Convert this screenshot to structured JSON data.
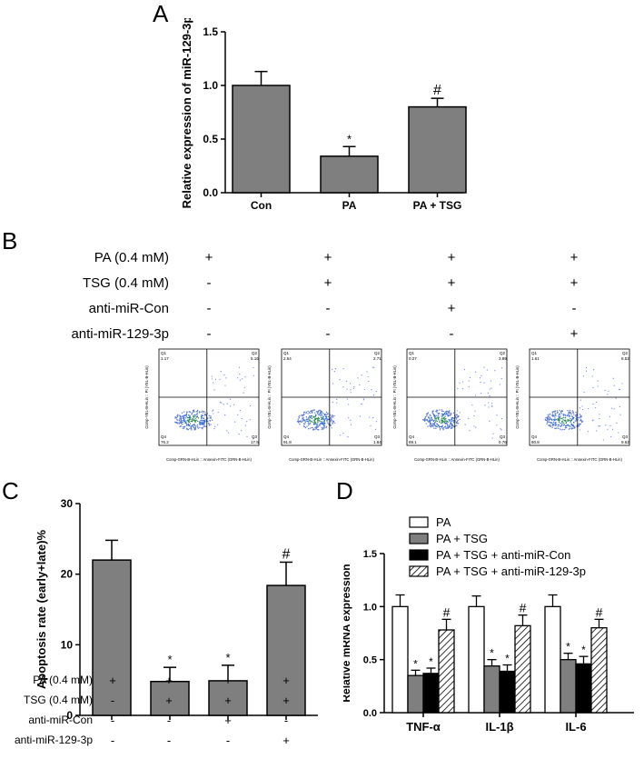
{
  "panels": {
    "A": "A",
    "B": "B",
    "C": "C",
    "D": "D"
  },
  "colors": {
    "bar_gray": "#7f7f7f",
    "black": "#000000",
    "white": "#ffffff"
  },
  "chart_data": [
    {
      "id": "A",
      "type": "bar",
      "ylabel": "Relative expression of miR-129-3p",
      "categories": [
        "Con",
        "PA",
        "PA + TSG"
      ],
      "values": [
        1.0,
        0.34,
        0.8
      ],
      "errors": [
        0.13,
        0.09,
        0.08
      ],
      "annotations": [
        "",
        "*",
        "#"
      ],
      "ylim": [
        0,
        1.5
      ],
      "yticks": [
        "0.0",
        "0.5",
        "1.0",
        "1.5"
      ]
    },
    {
      "id": "C",
      "type": "bar",
      "ylabel": "Apoptosis rate (early+late)%",
      "categories": [
        "",
        "",
        "",
        ""
      ],
      "values": [
        22.0,
        4.8,
        4.9,
        18.4
      ],
      "errors": [
        2.8,
        2.0,
        2.2,
        3.3
      ],
      "annotations": [
        "",
        "*",
        "*",
        "#"
      ],
      "ylim": [
        0,
        30
      ],
      "yticks": [
        "0",
        "10",
        "20",
        "30"
      ]
    },
    {
      "id": "D",
      "type": "bar",
      "ylabel": "Relative mRNA expression",
      "categories": [
        "TNF-α",
        "IL-1β",
        "IL-6"
      ],
      "ylim": [
        0,
        1.5
      ],
      "yticks": [
        "0.0",
        "0.5",
        "1.0",
        "1.5"
      ],
      "series": [
        {
          "name": "PA",
          "values": [
            1.0,
            1.0,
            1.0
          ],
          "errors": [
            0.11,
            0.1,
            0.11
          ],
          "annotations": [
            "",
            "",
            ""
          ]
        },
        {
          "name": "PA + TSG",
          "values": [
            0.35,
            0.44,
            0.5
          ],
          "errors": [
            0.05,
            0.06,
            0.06
          ],
          "annotations": [
            "*",
            "*",
            "*"
          ]
        },
        {
          "name": "PA + TSG + anti-miR-Con",
          "values": [
            0.37,
            0.39,
            0.46
          ],
          "errors": [
            0.05,
            0.06,
            0.07
          ],
          "annotations": [
            "*",
            "*",
            "*"
          ]
        },
        {
          "name": "PA + TSG + anti-miR-129-3p",
          "values": [
            0.78,
            0.82,
            0.8
          ],
          "errors": [
            0.1,
            0.1,
            0.08
          ],
          "annotations": [
            "#",
            "#",
            "#"
          ]
        }
      ]
    }
  ],
  "panelB": {
    "rows": [
      {
        "label": "PA (0.4 mM)",
        "signs": [
          "+",
          "+",
          "+",
          "+"
        ]
      },
      {
        "label": "TSG (0.4 mM)",
        "signs": [
          "-",
          "+",
          "+",
          "+"
        ]
      },
      {
        "label": "anti-miR-Con",
        "signs": [
          "-",
          "-",
          "+",
          "-"
        ]
      },
      {
        "label": "anti-miR-129-3p",
        "signs": [
          "-",
          "-",
          "-",
          "+"
        ]
      }
    ],
    "flow_plots": [
      {
        "q1": "1.17",
        "q2": "5.16",
        "q3": "17.5",
        "q4": "76.2"
      },
      {
        "q1": "2.54",
        "q2": "2.71",
        "q3": "1.84",
        "q4": "91.8"
      },
      {
        "q1": "0.27",
        "q2": "3.89",
        "q3": "0.76",
        "q4": "89.1"
      },
      {
        "q1": "1.61",
        "q2": "8.52",
        "q3": "9.62",
        "q4": "80.8"
      }
    ],
    "flow_axis_x": "Comp-GRN-B-HLin :: Annexin-FITC (GRN-B-HLin)",
    "flow_axis_y": "Comp-YEL-B-HLin :: PI (YEL-B-HLin)",
    "flow_label_q1": "Q1",
    "flow_label_q2": "Q2",
    "flow_label_q3": "Q3",
    "flow_label_q4": "Q4"
  },
  "panelC_rows": [
    {
      "label": "PA (0.4 mM)",
      "signs": [
        "+",
        "+",
        "+",
        "+"
      ]
    },
    {
      "label": "TSG (0.4 mM)",
      "signs": [
        "-",
        "+",
        "+",
        "+"
      ]
    },
    {
      "label": "anti-miR-Con",
      "signs": [
        "-",
        "-",
        "+",
        "-"
      ]
    },
    {
      "label": "anti-miR-129-3p",
      "signs": [
        "-",
        "-",
        "-",
        "+"
      ]
    }
  ]
}
